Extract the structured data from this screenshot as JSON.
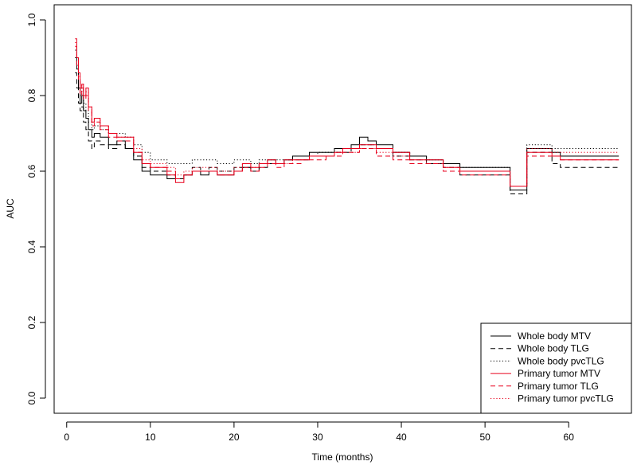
{
  "chart_data": {
    "type": "line",
    "title": "",
    "xlabel": "Time (months)",
    "ylabel": "AUC",
    "xlim": [
      -1.5,
      67.5
    ],
    "ylim": [
      -0.04,
      1.04
    ],
    "x_ticks": [
      0,
      10,
      20,
      30,
      40,
      50,
      60
    ],
    "y_ticks": [
      0.0,
      0.2,
      0.4,
      0.6,
      0.8,
      1.0
    ],
    "x_tick_labels": [
      "0",
      "10",
      "20",
      "30",
      "40",
      "50",
      "60"
    ],
    "y_tick_labels": [
      "0.0",
      "0.2",
      "0.4",
      "0.6",
      "0.8",
      "1.0"
    ],
    "grid": false,
    "legend_position": "bottom-right",
    "series": [
      {
        "name": "Whole body MTV",
        "color": "#000000",
        "linestyle": "solid",
        "x": [
          1.0,
          1.2,
          1.4,
          1.6,
          1.8,
          2.0,
          2.3,
          2.6,
          3.0,
          3.3,
          4.0,
          5.0,
          6.0,
          7.0,
          8.0,
          9.0,
          10.0,
          12.0,
          13.0,
          14.0,
          15.0,
          16.0,
          17.0,
          18.0,
          19.0,
          20.0,
          21.0,
          22.0,
          23.0,
          24.0,
          25.0,
          26.0,
          27.0,
          28.0,
          29.0,
          30.0,
          31.0,
          32.0,
          33.0,
          34.0,
          35.0,
          36.0,
          37.0,
          39.0,
          41.0,
          43.0,
          45.0,
          47.0,
          53.0,
          55.0,
          56.0,
          58.0,
          59.0,
          66.0
        ],
        "y": [
          0.9,
          0.87,
          0.82,
          0.78,
          0.8,
          0.76,
          0.74,
          0.71,
          0.69,
          0.7,
          0.69,
          0.67,
          0.68,
          0.66,
          0.63,
          0.6,
          0.59,
          0.58,
          0.58,
          0.59,
          0.6,
          0.59,
          0.6,
          0.59,
          0.59,
          0.6,
          0.61,
          0.6,
          0.62,
          0.63,
          0.62,
          0.63,
          0.64,
          0.64,
          0.65,
          0.65,
          0.65,
          0.66,
          0.66,
          0.67,
          0.69,
          0.68,
          0.67,
          0.65,
          0.64,
          0.63,
          0.62,
          0.61,
          0.55,
          0.66,
          0.66,
          0.65,
          0.64,
          0.64
        ]
      },
      {
        "name": "Whole body TLG",
        "color": "#000000",
        "linestyle": "dashed",
        "x": [
          1.0,
          1.2,
          1.4,
          1.6,
          1.8,
          2.0,
          2.3,
          2.6,
          3.0,
          3.3,
          4.0,
          5.0,
          6.0,
          7.0,
          8.0,
          9.0,
          10.0,
          12.0,
          13.0,
          14.0,
          15.0,
          16.0,
          17.0,
          18.0,
          19.0,
          20.0,
          21.0,
          22.0,
          23.0,
          24.0,
          25.0,
          26.0,
          27.0,
          28.0,
          29.0,
          30.0,
          31.0,
          32.0,
          33.0,
          34.0,
          35.0,
          36.0,
          37.0,
          39.0,
          41.0,
          43.0,
          45.0,
          47.0,
          53.0,
          55.0,
          56.0,
          58.0,
          59.0,
          66.0
        ],
        "y": [
          0.86,
          0.82,
          0.78,
          0.76,
          0.77,
          0.73,
          0.71,
          0.68,
          0.66,
          0.68,
          0.67,
          0.66,
          0.67,
          0.66,
          0.64,
          0.61,
          0.6,
          0.59,
          0.58,
          0.59,
          0.61,
          0.6,
          0.61,
          0.6,
          0.6,
          0.61,
          0.61,
          0.6,
          0.61,
          0.62,
          0.62,
          0.63,
          0.63,
          0.63,
          0.64,
          0.64,
          0.64,
          0.65,
          0.65,
          0.66,
          0.67,
          0.67,
          0.66,
          0.64,
          0.63,
          0.62,
          0.61,
          0.59,
          0.54,
          0.65,
          0.65,
          0.62,
          0.61,
          0.61
        ]
      },
      {
        "name": "Whole body pvcTLG",
        "color": "#000000",
        "linestyle": "dotted",
        "x": [
          1.0,
          1.2,
          1.4,
          1.6,
          1.8,
          2.0,
          2.3,
          2.6,
          3.0,
          3.3,
          4.0,
          5.0,
          6.0,
          7.0,
          8.0,
          9.0,
          10.0,
          12.0,
          13.0,
          14.0,
          15.0,
          16.0,
          17.0,
          18.0,
          19.0,
          20.0,
          21.0,
          22.0,
          23.0,
          24.0,
          25.0,
          26.0,
          27.0,
          28.0,
          29.0,
          30.0,
          31.0,
          32.0,
          33.0,
          34.0,
          35.0,
          36.0,
          37.0,
          39.0,
          41.0,
          43.0,
          45.0,
          47.0,
          53.0,
          55.0,
          56.0,
          58.0,
          59.0,
          66.0
        ],
        "y": [
          0.92,
          0.88,
          0.84,
          0.8,
          0.82,
          0.78,
          0.76,
          0.73,
          0.71,
          0.72,
          0.71,
          0.7,
          0.7,
          0.69,
          0.67,
          0.65,
          0.63,
          0.62,
          0.62,
          0.62,
          0.63,
          0.63,
          0.63,
          0.62,
          0.62,
          0.63,
          0.63,
          0.62,
          0.63,
          0.63,
          0.63,
          0.63,
          0.64,
          0.64,
          0.64,
          0.65,
          0.65,
          0.65,
          0.66,
          0.66,
          0.67,
          0.67,
          0.66,
          0.65,
          0.64,
          0.63,
          0.62,
          0.61,
          0.56,
          0.67,
          0.67,
          0.66,
          0.66,
          0.66
        ]
      },
      {
        "name": "Primary tumor MTV",
        "color": "#e8001c",
        "linestyle": "solid",
        "x": [
          1.0,
          1.2,
          1.4,
          1.6,
          1.8,
          2.0,
          2.3,
          2.6,
          3.0,
          3.3,
          4.0,
          5.0,
          6.0,
          7.0,
          8.0,
          9.0,
          10.0,
          12.0,
          13.0,
          14.0,
          15.0,
          16.0,
          17.0,
          18.0,
          19.0,
          20.0,
          21.0,
          22.0,
          23.0,
          24.0,
          25.0,
          26.0,
          27.0,
          28.0,
          29.0,
          30.0,
          31.0,
          32.0,
          33.0,
          34.0,
          35.0,
          36.0,
          37.0,
          39.0,
          41.0,
          43.0,
          45.0,
          47.0,
          53.0,
          55.0,
          56.0,
          58.0,
          59.0,
          66.0
        ],
        "y": [
          0.95,
          0.9,
          0.86,
          0.82,
          0.83,
          0.8,
          0.82,
          0.77,
          0.73,
          0.74,
          0.72,
          0.7,
          0.69,
          0.69,
          0.65,
          0.62,
          0.61,
          0.59,
          0.57,
          0.59,
          0.6,
          0.6,
          0.6,
          0.59,
          0.59,
          0.6,
          0.62,
          0.61,
          0.62,
          0.63,
          0.62,
          0.63,
          0.63,
          0.63,
          0.64,
          0.64,
          0.64,
          0.65,
          0.66,
          0.66,
          0.67,
          0.67,
          0.66,
          0.65,
          0.63,
          0.63,
          0.61,
          0.6,
          0.56,
          0.65,
          0.65,
          0.64,
          0.63,
          0.63
        ]
      },
      {
        "name": "Primary tumor TLG",
        "color": "#e8001c",
        "linestyle": "dashed",
        "x": [
          1.0,
          1.2,
          1.4,
          1.6,
          1.8,
          2.0,
          2.3,
          2.6,
          3.0,
          3.3,
          4.0,
          5.0,
          6.0,
          7.0,
          8.0,
          9.0,
          10.0,
          12.0,
          13.0,
          14.0,
          15.0,
          16.0,
          17.0,
          18.0,
          19.0,
          20.0,
          21.0,
          22.0,
          23.0,
          24.0,
          25.0,
          26.0,
          27.0,
          28.0,
          29.0,
          30.0,
          31.0,
          32.0,
          33.0,
          34.0,
          35.0,
          36.0,
          37.0,
          39.0,
          41.0,
          43.0,
          45.0,
          47.0,
          53.0,
          55.0,
          56.0,
          58.0,
          59.0,
          66.0
        ],
        "y": [
          0.93,
          0.88,
          0.84,
          0.8,
          0.82,
          0.79,
          0.8,
          0.76,
          0.72,
          0.73,
          0.71,
          0.69,
          0.68,
          0.68,
          0.65,
          0.62,
          0.61,
          0.6,
          0.58,
          0.59,
          0.6,
          0.6,
          0.6,
          0.59,
          0.59,
          0.6,
          0.61,
          0.6,
          0.61,
          0.62,
          0.61,
          0.62,
          0.62,
          0.63,
          0.63,
          0.63,
          0.64,
          0.64,
          0.65,
          0.65,
          0.66,
          0.66,
          0.64,
          0.63,
          0.62,
          0.62,
          0.6,
          0.59,
          0.56,
          0.64,
          0.64,
          0.64,
          0.63,
          0.63
        ]
      },
      {
        "name": "Primary tumor pvcTLG",
        "color": "#e8001c",
        "linestyle": "dotted",
        "x": [
          1.0,
          1.2,
          1.4,
          1.6,
          1.8,
          2.0,
          2.3,
          2.6,
          3.0,
          3.3,
          4.0,
          5.0,
          6.0,
          7.0,
          8.0,
          9.0,
          10.0,
          12.0,
          13.0,
          14.0,
          15.0,
          16.0,
          17.0,
          18.0,
          19.0,
          20.0,
          21.0,
          22.0,
          23.0,
          24.0,
          25.0,
          26.0,
          27.0,
          28.0,
          29.0,
          30.0,
          31.0,
          32.0,
          33.0,
          34.0,
          35.0,
          36.0,
          37.0,
          39.0,
          41.0,
          43.0,
          45.0,
          47.0,
          53.0,
          55.0,
          56.0,
          58.0,
          59.0,
          66.0
        ],
        "y": [
          0.94,
          0.9,
          0.85,
          0.81,
          0.83,
          0.8,
          0.81,
          0.77,
          0.73,
          0.74,
          0.72,
          0.7,
          0.69,
          0.69,
          0.66,
          0.63,
          0.62,
          0.61,
          0.59,
          0.6,
          0.61,
          0.61,
          0.61,
          0.6,
          0.6,
          0.61,
          0.62,
          0.61,
          0.62,
          0.62,
          0.62,
          0.62,
          0.63,
          0.63,
          0.64,
          0.64,
          0.64,
          0.65,
          0.65,
          0.65,
          0.66,
          0.66,
          0.65,
          0.64,
          0.63,
          0.62,
          0.61,
          0.6,
          0.56,
          0.66,
          0.66,
          0.65,
          0.65,
          0.65
        ]
      }
    ]
  }
}
